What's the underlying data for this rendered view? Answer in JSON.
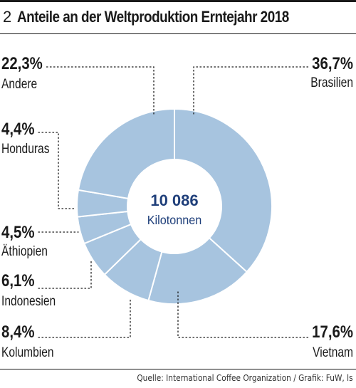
{
  "header": {
    "figure_number": "2",
    "title": "Anteile an der Weltproduktion Erntejahr 2018"
  },
  "chart_data": {
    "type": "pie",
    "style": "donut",
    "title": "Anteile an der Weltproduktion Erntejahr 2018",
    "center_value": "10 086",
    "center_unit": "Kilotonnen",
    "slices": [
      {
        "label": "Brasilien",
        "value": 36.7,
        "value_label": "36,7%"
      },
      {
        "label": "Vietnam",
        "value": 17.6,
        "value_label": "17,6%"
      },
      {
        "label": "Kolumbien",
        "value": 8.4,
        "value_label": "8,4%"
      },
      {
        "label": "Indonesien",
        "value": 6.1,
        "value_label": "6,1%"
      },
      {
        "label": "Äthiopien",
        "value": 4.5,
        "value_label": "4,5%"
      },
      {
        "label": "Honduras",
        "value": 4.4,
        "value_label": "4,4%"
      },
      {
        "label": "Andere",
        "value": 22.3,
        "value_label": "22,3%"
      }
    ],
    "colors": {
      "slice": "#a7c4df",
      "center_text": "#1f3f7a",
      "leader": "#1a1a1a"
    }
  },
  "footer": {
    "source": "Quelle: International Coffee Organization / Grafik: FuW, ls"
  }
}
